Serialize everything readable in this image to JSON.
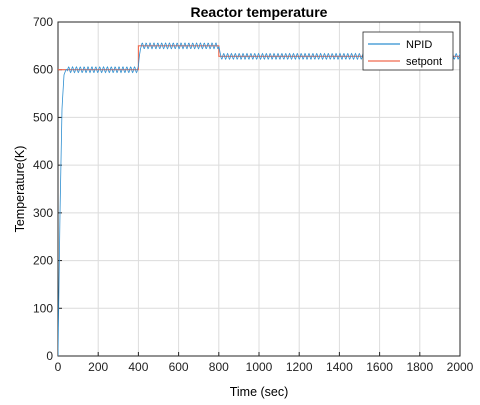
{
  "chart_data": {
    "type": "line",
    "title": "Reactor  temperature",
    "xlabel": "Time (sec)",
    "ylabel": "Temperature(K)",
    "xlim": [
      0,
      2000
    ],
    "ylim": [
      0,
      700
    ],
    "xticks": [
      0,
      200,
      400,
      600,
      800,
      1000,
      1200,
      1400,
      1600,
      1800,
      2000
    ],
    "yticks": [
      0,
      100,
      200,
      300,
      400,
      500,
      600,
      700
    ],
    "grid": true,
    "legend_position": "top-right",
    "series": [
      {
        "name": "NPID",
        "color": "#2f8fd0",
        "oscillating": true,
        "x": [
          0,
          10,
          20,
          30,
          40,
          50,
          400,
          405,
          410,
          800,
          805,
          810,
          2000
        ],
        "y": [
          0,
          300,
          520,
          590,
          600,
          600,
          600,
          630,
          650,
          650,
          632,
          628,
          628
        ]
      },
      {
        "name": "setpont",
        "color": "#f06a4f",
        "oscillating": false,
        "x": [
          0,
          400,
          400,
          800,
          800,
          2000
        ],
        "y": [
          600,
          600,
          650,
          650,
          628,
          628
        ]
      }
    ]
  }
}
